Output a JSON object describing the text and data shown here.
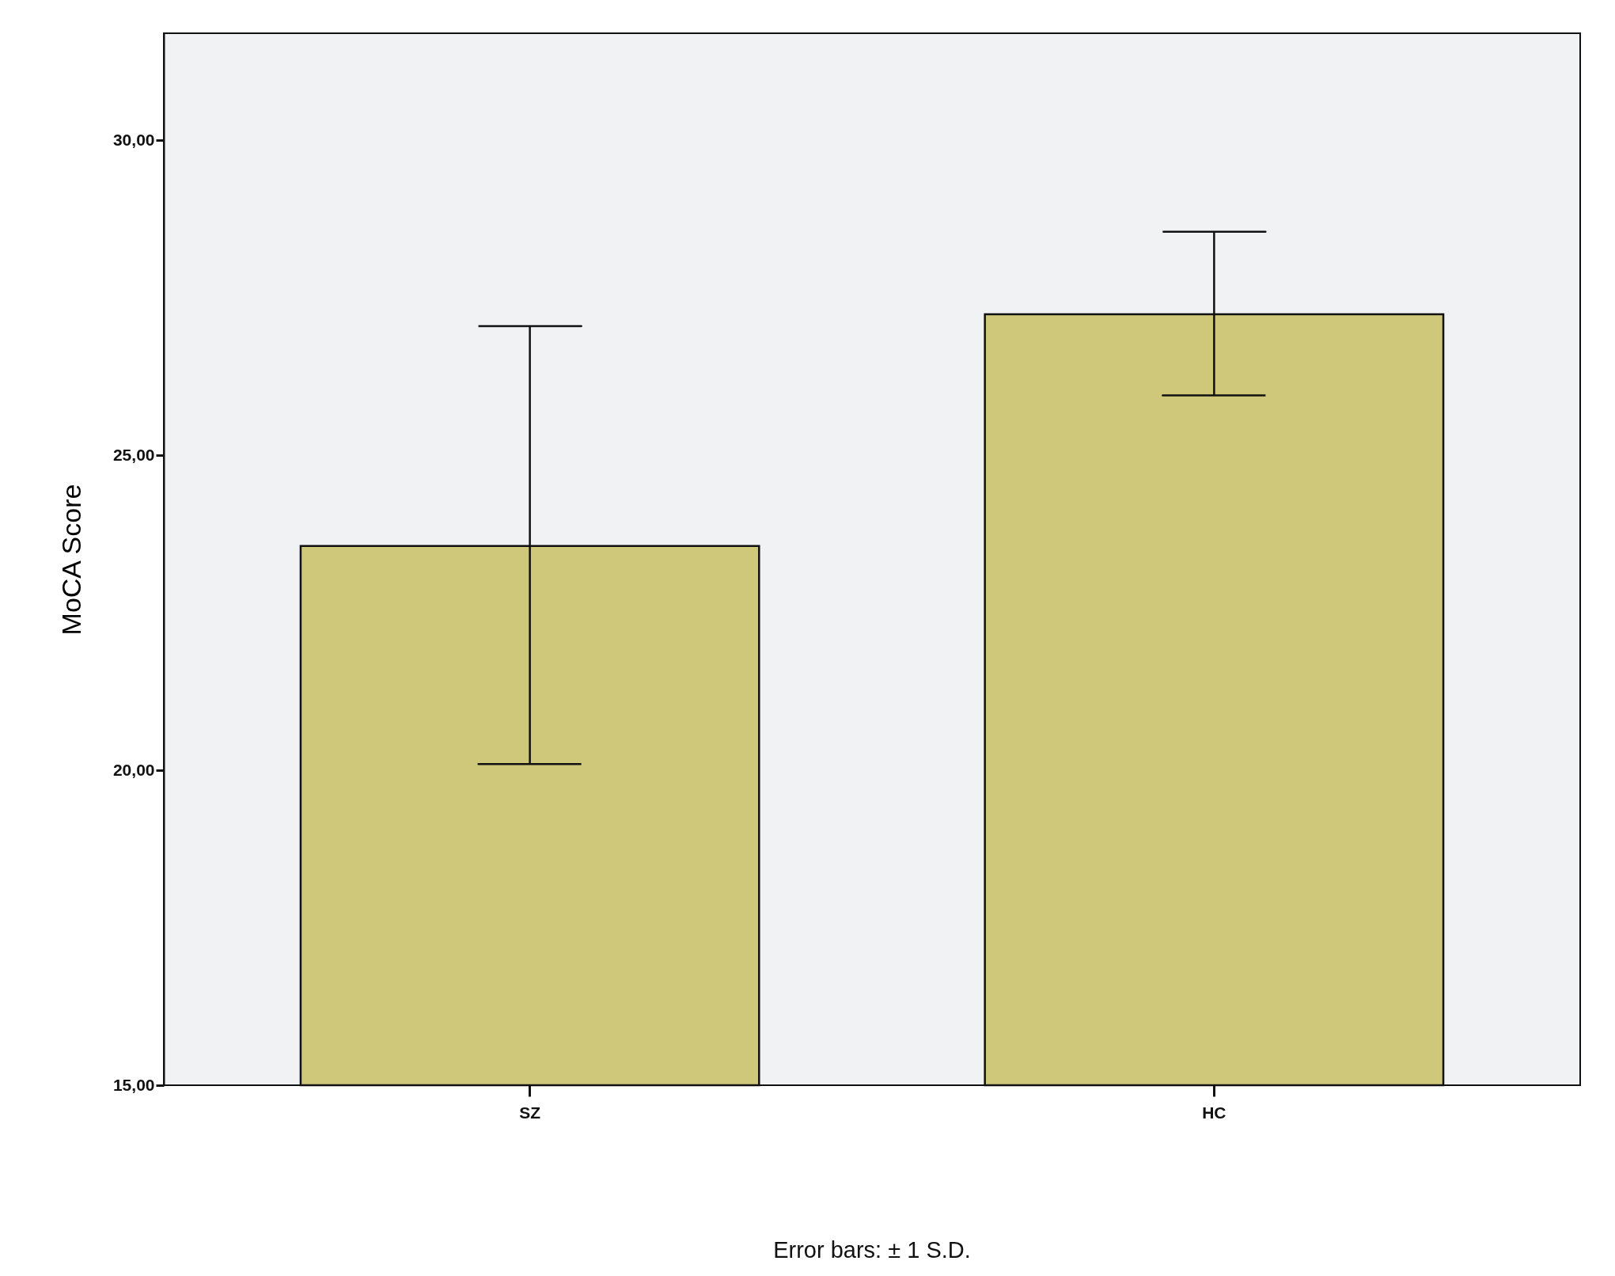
{
  "chart_data": {
    "type": "bar",
    "ylabel": "MoCA Score",
    "categories": [
      "SZ",
      "HC"
    ],
    "values": [
      23.56,
      27.24
    ],
    "errors": [
      [
        20.1,
        27.05
      ],
      [
        25.95,
        28.55
      ]
    ],
    "color": "#cfc77a",
    "ylim": [
      15,
      31.7
    ],
    "yticks": [
      {
        "value": 15,
        "label": "15,00"
      },
      {
        "value": 20,
        "label": "20,00"
      },
      {
        "value": 25,
        "label": "25,00"
      },
      {
        "value": 30,
        "label": "30,00"
      }
    ],
    "grid": false,
    "annotations": [
      "Error bars:  ± 1 S.D."
    ]
  }
}
